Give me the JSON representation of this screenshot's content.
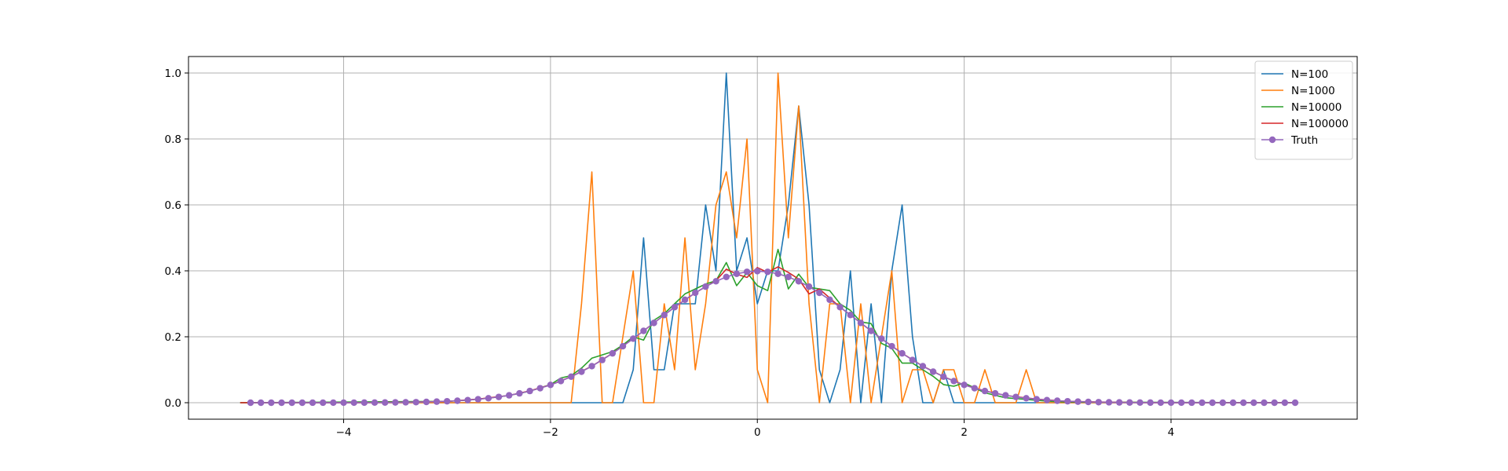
{
  "chart_data": {
    "type": "line",
    "title": "",
    "xlabel": "",
    "ylabel": "",
    "xlim": [
      -5.5,
      5.8
    ],
    "ylim": [
      -0.05,
      1.05
    ],
    "xticks": [
      -4,
      -2,
      0,
      2,
      4
    ],
    "yticks": [
      0.0,
      0.2,
      0.4,
      0.6,
      0.8,
      1.0
    ],
    "xtick_labels": [
      "−4",
      "−2",
      "0",
      "2",
      "4"
    ],
    "ytick_labels": [
      "0.0",
      "0.2",
      "0.4",
      "0.6",
      "0.8",
      "1.0"
    ],
    "grid": true,
    "legend_position": "top-right",
    "series": [
      {
        "name": "N=100",
        "color": "#1f77b4",
        "marker": "none",
        "x": [
          -5.0,
          -1.3,
          -1.2,
          -1.1,
          -1.0,
          -0.9,
          -0.8,
          -0.7,
          -0.6,
          -0.5,
          -0.4,
          -0.3,
          -0.2,
          -0.1,
          0.0,
          0.1,
          0.2,
          0.3,
          0.4,
          0.5,
          0.6,
          0.7,
          0.8,
          0.9,
          1.0,
          1.1,
          1.2,
          1.3,
          1.4,
          1.5,
          1.6,
          1.7,
          1.8,
          1.9,
          5.2
        ],
        "y": [
          0.0,
          0.0,
          0.1,
          0.5,
          0.1,
          0.1,
          0.3,
          0.3,
          0.3,
          0.6,
          0.4,
          1.0,
          0.4,
          0.5,
          0.3,
          0.4,
          0.4,
          0.6,
          0.9,
          0.6,
          0.1,
          0.0,
          0.1,
          0.4,
          0.0,
          0.3,
          0.0,
          0.4,
          0.6,
          0.2,
          0.0,
          0.0,
          0.1,
          0.0,
          0.0
        ]
      },
      {
        "name": "N=1000",
        "color": "#ff7f0e",
        "marker": "none",
        "x": [
          -5.0,
          -1.8,
          -1.7,
          -1.6,
          -1.5,
          -1.4,
          -1.3,
          -1.2,
          -1.1,
          -1.0,
          -0.9,
          -0.8,
          -0.7,
          -0.6,
          -0.5,
          -0.4,
          -0.3,
          -0.2,
          -0.1,
          0.0,
          0.1,
          0.2,
          0.3,
          0.4,
          0.5,
          0.6,
          0.7,
          0.8,
          0.9,
          1.0,
          1.1,
          1.2,
          1.3,
          1.4,
          1.5,
          1.6,
          1.7,
          1.8,
          1.9,
          2.0,
          2.1,
          2.2,
          2.3,
          2.4,
          2.5,
          2.6,
          2.7,
          2.8,
          5.2
        ],
        "y": [
          0.0,
          0.0,
          0.3,
          0.7,
          0.0,
          0.0,
          0.2,
          0.4,
          0.0,
          0.0,
          0.3,
          0.1,
          0.5,
          0.1,
          0.3,
          0.6,
          0.7,
          0.5,
          0.8,
          0.1,
          0.0,
          1.0,
          0.5,
          0.9,
          0.3,
          0.0,
          0.3,
          0.3,
          0.0,
          0.3,
          0.0,
          0.2,
          0.4,
          0.0,
          0.1,
          0.1,
          0.0,
          0.1,
          0.1,
          0.0,
          0.0,
          0.1,
          0.0,
          0.0,
          0.0,
          0.1,
          0.0,
          0.0,
          0.0
        ]
      },
      {
        "name": "N=10000",
        "color": "#2ca02c",
        "marker": "none",
        "x": [
          -5.0,
          -3.0,
          -2.8,
          -2.6,
          -2.4,
          -2.2,
          -2.0,
          -1.9,
          -1.8,
          -1.7,
          -1.6,
          -1.5,
          -1.4,
          -1.3,
          -1.2,
          -1.1,
          -1.0,
          -0.9,
          -0.8,
          -0.7,
          -0.6,
          -0.5,
          -0.4,
          -0.3,
          -0.2,
          -0.1,
          0.0,
          0.1,
          0.2,
          0.3,
          0.4,
          0.5,
          0.6,
          0.7,
          0.8,
          0.9,
          1.0,
          1.1,
          1.2,
          1.3,
          1.4,
          1.5,
          1.6,
          1.7,
          1.8,
          1.9,
          2.0,
          2.2,
          2.4,
          2.6,
          2.8,
          3.0,
          5.2
        ],
        "y": [
          0.0,
          0.004,
          0.008,
          0.014,
          0.022,
          0.035,
          0.055,
          0.075,
          0.082,
          0.105,
          0.135,
          0.145,
          0.155,
          0.175,
          0.2,
          0.19,
          0.25,
          0.27,
          0.3,
          0.33,
          0.345,
          0.36,
          0.37,
          0.425,
          0.355,
          0.395,
          0.355,
          0.34,
          0.465,
          0.345,
          0.39,
          0.35,
          0.345,
          0.34,
          0.3,
          0.28,
          0.245,
          0.24,
          0.18,
          0.165,
          0.12,
          0.12,
          0.1,
          0.08,
          0.055,
          0.05,
          0.06,
          0.03,
          0.015,
          0.01,
          0.005,
          0.002,
          0.0
        ]
      },
      {
        "name": "N=100000",
        "color": "#d62728",
        "marker": "none",
        "x": [
          -5.0,
          -4.0,
          -3.5,
          -3.0,
          -2.7,
          -2.4,
          -2.2,
          -2.0,
          -1.8,
          -1.6,
          -1.4,
          -1.2,
          -1.0,
          -0.8,
          -0.6,
          -0.5,
          -0.4,
          -0.3,
          -0.2,
          -0.1,
          0.0,
          0.1,
          0.2,
          0.3,
          0.4,
          0.5,
          0.6,
          0.8,
          1.0,
          1.2,
          1.4,
          1.6,
          1.8,
          2.0,
          2.2,
          2.4,
          2.7,
          3.0,
          3.5,
          4.0,
          5.2
        ],
        "y": [
          0.0,
          0.0,
          0.001,
          0.004,
          0.011,
          0.022,
          0.036,
          0.054,
          0.079,
          0.111,
          0.15,
          0.194,
          0.242,
          0.29,
          0.333,
          0.352,
          0.37,
          0.405,
          0.39,
          0.38,
          0.41,
          0.395,
          0.412,
          0.395,
          0.375,
          0.33,
          0.345,
          0.29,
          0.242,
          0.194,
          0.15,
          0.111,
          0.079,
          0.054,
          0.036,
          0.022,
          0.011,
          0.004,
          0.001,
          0.0,
          0.0
        ]
      },
      {
        "name": "Truth",
        "color": "#9467bd",
        "marker": "circle",
        "x_start": -4.9,
        "x_step": 0.1,
        "function": "standard normal pdf"
      }
    ]
  }
}
